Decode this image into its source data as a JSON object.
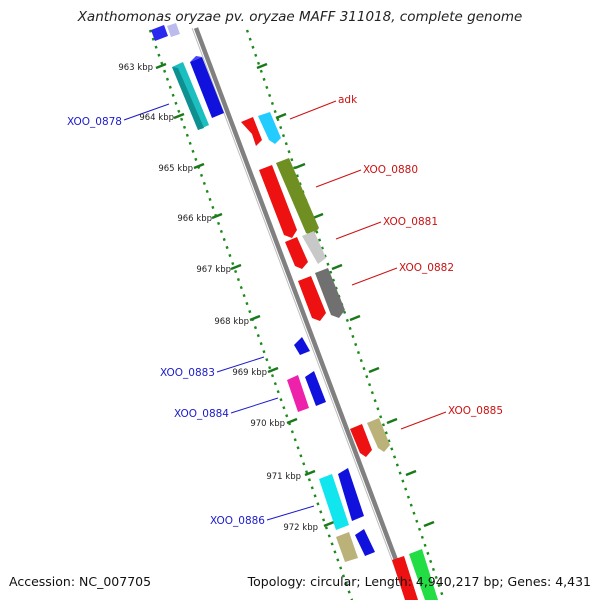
{
  "title": "Xanthomonas oryzae pv. oryzae MAFF 311018, complete genome",
  "footer": {
    "accession": "Accession: NC_007705",
    "topology": "Topology: circular; Length: 4,940,217 bp; Genes: 4,431"
  },
  "kbp_labels": [
    "963 kbp",
    "964 kbp",
    "965 kbp",
    "966 kbp",
    "967 kbp",
    "968 kbp",
    "969 kbp",
    "970 kbp",
    "971 kbp",
    "972 kbp"
  ],
  "gene_labels": {
    "forward": [
      "XOO_0878",
      "XOO_0883",
      "XOO_0884",
      "XOO_0886"
    ],
    "reverse": [
      "adk",
      "XOO_0880",
      "XOO_0881",
      "XOO_0882",
      "XOO_0885"
    ]
  },
  "colors": {
    "forward_label": "#1a1acc",
    "reverse_label": "#cc1111",
    "tick_marks": "#1a7a1a",
    "backbone": "#808080"
  }
}
